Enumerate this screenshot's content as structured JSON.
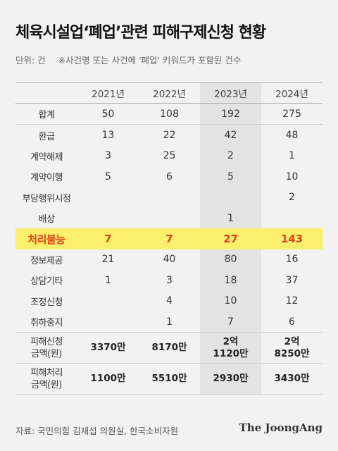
{
  "title": "체육시설업‘폐업’관련 피해구제신청 현황",
  "note": {
    "unit": "단위: 건",
    "remark": "※사건명 또는 사건에 '폐업' 키워드가 포함된 건수"
  },
  "source": "자료: 국민의힘 김재섭 의원실, 한국소비자원",
  "brand": "The JoongAng",
  "chart_data": {
    "type": "table",
    "title": "체육시설업‘폐업’관련 피해구제신청 현황",
    "columns": [
      "2021년",
      "2022년",
      "2023년",
      "2024년"
    ],
    "rows": [
      {
        "label": "합계",
        "values": [
          "50",
          "108",
          "192",
          "275"
        ]
      },
      {
        "label": "환급",
        "values": [
          "13",
          "22",
          "42",
          "48"
        ]
      },
      {
        "label": "계약해제",
        "values": [
          "3",
          "25",
          "2",
          "1"
        ]
      },
      {
        "label": "계약이행",
        "values": [
          "5",
          "6",
          "5",
          "10"
        ]
      },
      {
        "label": "부당행위시정",
        "values": [
          "",
          "",
          "",
          "2"
        ]
      },
      {
        "label": "배상",
        "values": [
          "",
          "",
          "1",
          ""
        ]
      },
      {
        "label": "처리불능",
        "values": [
          "7",
          "7",
          "27",
          "143"
        ]
      },
      {
        "label": "정보제공",
        "values": [
          "21",
          "40",
          "80",
          "16"
        ]
      },
      {
        "label": "상담기타",
        "values": [
          "1",
          "3",
          "18",
          "37"
        ]
      },
      {
        "label": "조정신청",
        "values": [
          "",
          "4",
          "10",
          "12"
        ]
      },
      {
        "label": "취하중지",
        "values": [
          "",
          "1",
          "7",
          "6"
        ]
      },
      {
        "label": "피해신청\n금액(원)",
        "values": [
          "3370만",
          "8170만",
          "2억\n1120만",
          "2억\n8250만"
        ]
      },
      {
        "label": "피해처리\n금액(원)",
        "values": [
          "1100만",
          "5510만",
          "2930만",
          "3430만"
        ]
      }
    ],
    "highlight_row": "처리불능",
    "highlight_color": "#fbf06b",
    "highlight_text_color": "#e3421a",
    "shaded_column": "2023년"
  }
}
